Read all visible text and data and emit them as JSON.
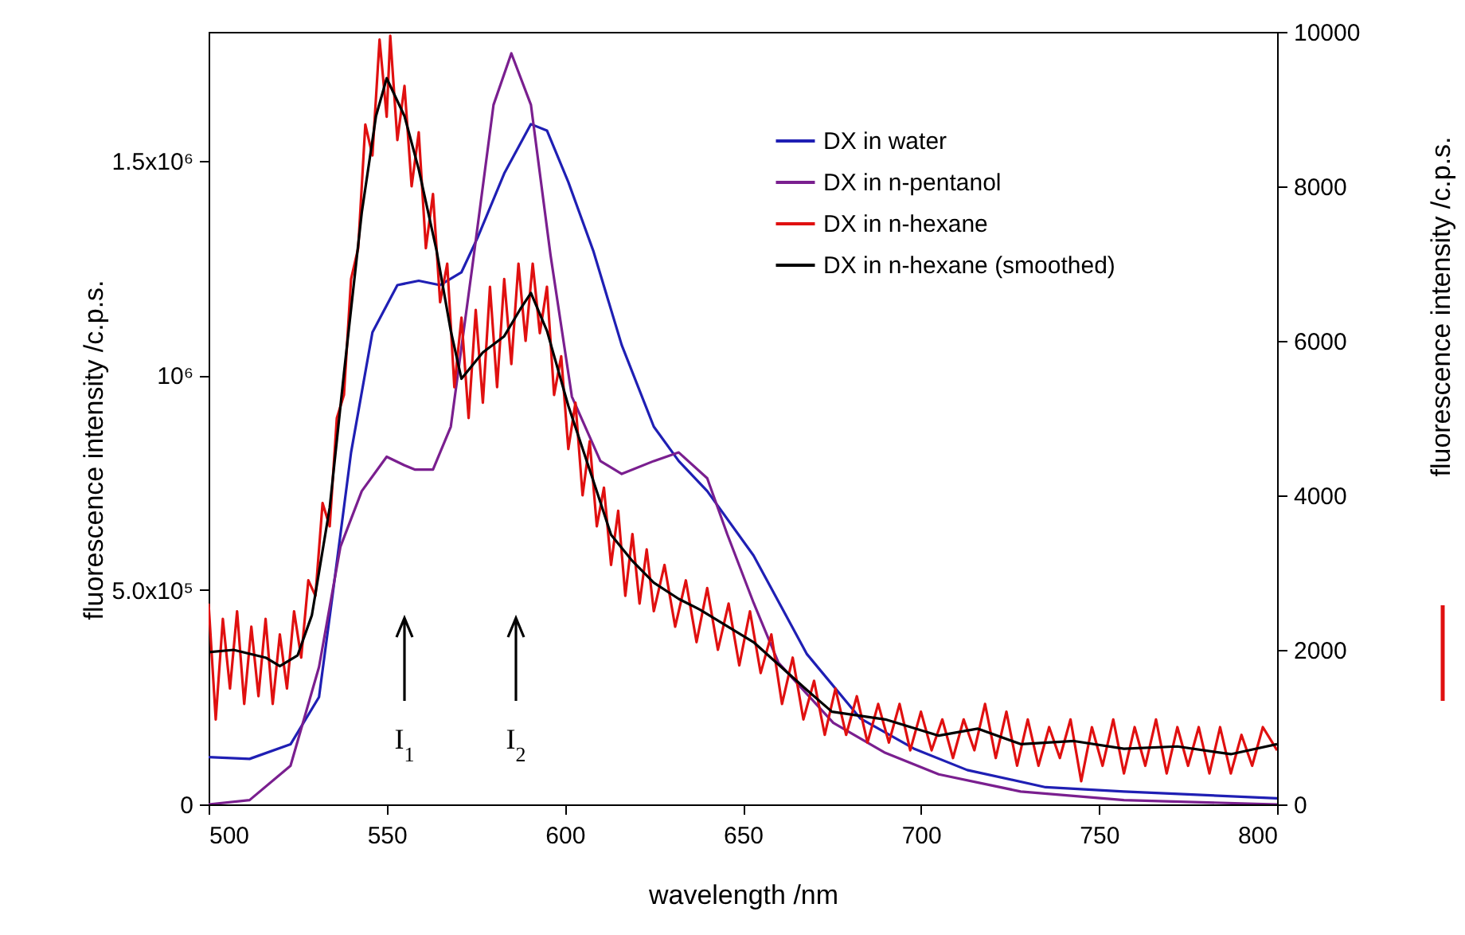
{
  "chart_data": {
    "type": "line",
    "xlabel": "wavelength /nm",
    "ylabel": "fluorescence intensity /c.p.s.",
    "y2label": "fluorescence intensity /c.p.s.",
    "xlim": [
      500,
      800
    ],
    "xticks": [
      500,
      550,
      600,
      650,
      700,
      750,
      800
    ],
    "ylim": [
      0,
      1800000
    ],
    "yticks": [
      0,
      {
        "value": 500000,
        "label": "5.0x10⁵"
      },
      {
        "value": 1000000,
        "label": "10⁶"
      },
      {
        "value": 1500000,
        "label": "1.5x10⁶"
      }
    ],
    "y2lim": [
      0,
      10000
    ],
    "y2ticks": [
      0,
      2000,
      4000,
      6000,
      8000,
      10000
    ],
    "legend": "top right",
    "grid": false,
    "marker": "none",
    "line_style": "solid",
    "series": [
      {
        "name": "DX in water",
        "color": "#1f1fb4",
        "x": [
          500,
          511.5,
          523,
          531,
          535,
          540,
          546,
          553,
          559,
          565,
          571,
          575.5,
          583,
          590.5,
          595,
          601,
          608,
          616,
          625,
          632,
          640,
          653,
          668,
          683,
          698,
          713,
          735,
          757,
          800
        ],
        "values": [
          110000,
          106000,
          140000,
          250000,
          500000,
          820000,
          1100000,
          1210000,
          1220000,
          1210000,
          1240000,
          1320000,
          1470000,
          1585000,
          1570000,
          1450000,
          1290000,
          1070000,
          880000,
          800000,
          730000,
          580000,
          350000,
          200000,
          130000,
          80000,
          40000,
          30000,
          14000
        ]
      },
      {
        "name": "DX in n-pentanol",
        "color": "#7a1f8f",
        "x": [
          500,
          511.5,
          523,
          531,
          537,
          543,
          550,
          555,
          558,
          563,
          568,
          574,
          580,
          585,
          590.5,
          596,
          602,
          610,
          616,
          625,
          632,
          640,
          645.6,
          653,
          660,
          675.4,
          690,
          705,
          728,
          757,
          800
        ],
        "values": [
          0,
          10000,
          90000,
          320000,
          600000,
          730000,
          810000,
          790000,
          780000,
          780000,
          880000,
          1250000,
          1630000,
          1750000,
          1630000,
          1280000,
          950000,
          800000,
          770000,
          800000,
          820000,
          760000,
          630000,
          470000,
          330000,
          190000,
          120000,
          70000,
          30000,
          10000,
          0
        ]
      },
      {
        "name": "DX in n-hexane",
        "color": "#e01010",
        "axis": "y2",
        "x": [
          500,
          502,
          504,
          506,
          508,
          510,
          512,
          514,
          516,
          518,
          520,
          522,
          524,
          526,
          528,
          530,
          532,
          534,
          536,
          538,
          540,
          542,
          544,
          546,
          548,
          550,
          551,
          553,
          555,
          557,
          559,
          561,
          563,
          565,
          567,
          569,
          571,
          573,
          575,
          577,
          579,
          581,
          583,
          585,
          587,
          589,
          591,
          593,
          595,
          597,
          599,
          601,
          603,
          605,
          607,
          609,
          611,
          613,
          615,
          617,
          619,
          621,
          623,
          625,
          628,
          631,
          634,
          637,
          640,
          643,
          646,
          649,
          652,
          655,
          658,
          661,
          664,
          667,
          670,
          673,
          676,
          679,
          682,
          685,
          688,
          691,
          694,
          697,
          700,
          703,
          706,
          709,
          712,
          715,
          718,
          721,
          724,
          727,
          730,
          733,
          736,
          739,
          742,
          745,
          748,
          751,
          754,
          757,
          760,
          763,
          766,
          769,
          772,
          775,
          778,
          781,
          784,
          787,
          790,
          793,
          796,
          800
        ],
        "values": [
          2600,
          1100,
          2400,
          1500,
          2500,
          1300,
          2300,
          1400,
          2400,
          1300,
          2200,
          1500,
          2500,
          1900,
          2900,
          2700,
          3900,
          3600,
          5000,
          5300,
          6800,
          7200,
          8800,
          8400,
          9900,
          8900,
          9950,
          8600,
          9300,
          8000,
          8700,
          7200,
          7900,
          6500,
          7000,
          5400,
          6300,
          5000,
          6400,
          5200,
          6700,
          5400,
          6800,
          5700,
          7000,
          6000,
          7000,
          6100,
          6700,
          5300,
          5800,
          4600,
          5200,
          4000,
          4700,
          3600,
          4100,
          3100,
          3800,
          2700,
          3500,
          2600,
          3300,
          2500,
          3100,
          2300,
          2900,
          2100,
          2800,
          2000,
          2600,
          1800,
          2500,
          1700,
          2200,
          1300,
          1900,
          1100,
          1600,
          900,
          1500,
          900,
          1400,
          800,
          1300,
          800,
          1300,
          700,
          1200,
          700,
          1100,
          600,
          1100,
          700,
          1300,
          600,
          1200,
          500,
          1100,
          500,
          1000,
          600,
          1100,
          300,
          1000,
          500,
          1100,
          400,
          1000,
          500,
          1100,
          400,
          1000,
          500,
          1000,
          400,
          1000,
          400,
          900,
          500,
          1000,
          700
        ]
      },
      {
        "name": "DX in n-hexane (smoothed)",
        "color": "#000000",
        "axis": "y2",
        "x": [
          500,
          507,
          516,
          520,
          525,
          529,
          534,
          538,
          543,
          547,
          550,
          555,
          559,
          564,
          568,
          571,
          577,
          583,
          587.5,
          590.5,
          595,
          601,
          608,
          613,
          619,
          625,
          632,
          638,
          653,
          668,
          675,
          690,
          705,
          716,
          728,
          743,
          757,
          772,
          787,
          800
        ],
        "values": [
          1970,
          2000,
          1900,
          1790,
          1930,
          2450,
          3840,
          5580,
          7660,
          8910,
          9400,
          8910,
          8220,
          7170,
          6130,
          5510,
          5850,
          6060,
          6410,
          6620,
          6130,
          5160,
          4190,
          3490,
          3150,
          2870,
          2660,
          2520,
          2100,
          1480,
          1200,
          1100,
          890,
          980,
          780,
          820,
          720,
          750,
          650,
          780
        ]
      }
    ],
    "annotations": [
      "I$_{1}$",
      "I$_{2}$"
    ]
  }
}
